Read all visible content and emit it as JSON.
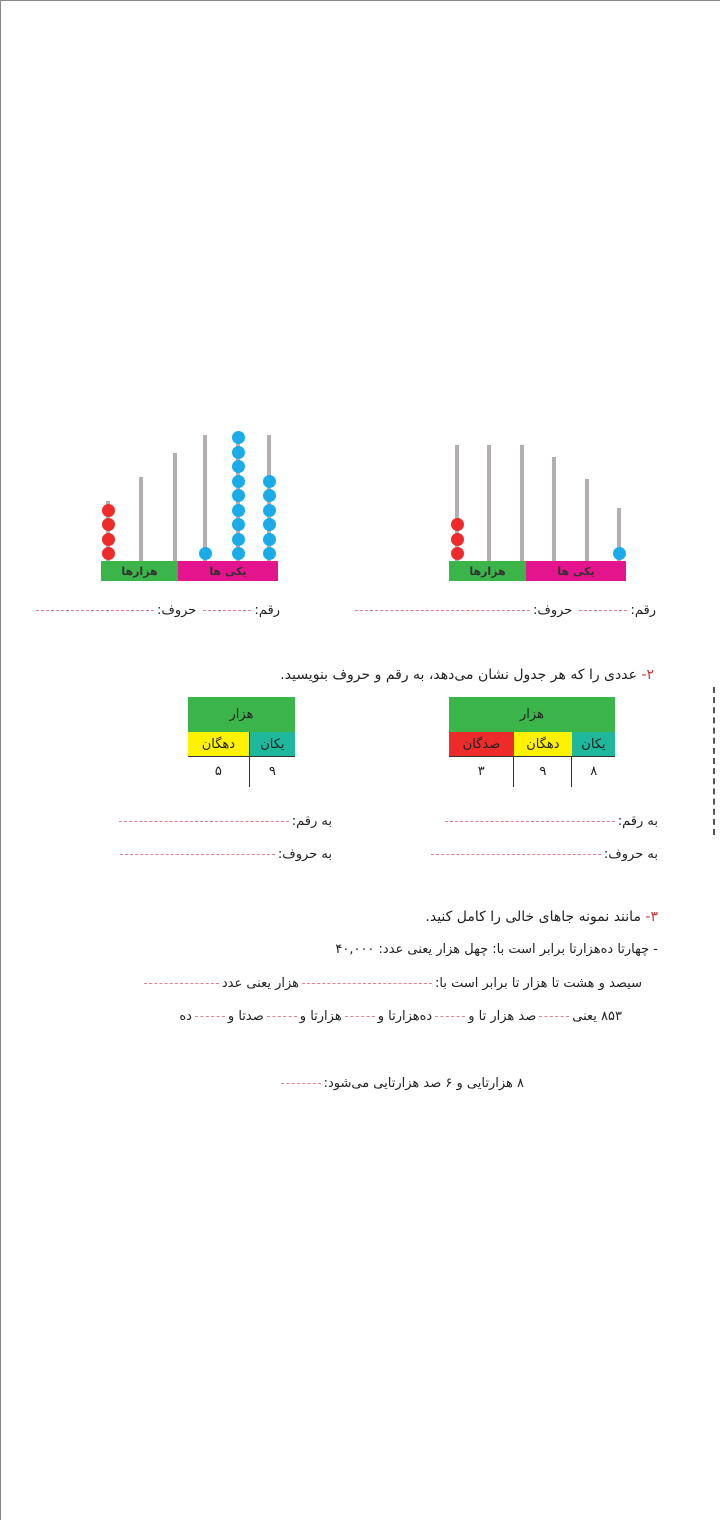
{
  "colors": {
    "green": "#3bb44a",
    "magenta": "#e4148c",
    "red": "#ee2b2b",
    "blue": "#1aabe8",
    "yellow": "#fff200",
    "teal": "#1fb89c",
    "dash": "#e57f8f"
  },
  "abacus_left": {
    "thousands_label": "هزارها",
    "ones_label": "یکی ها",
    "beads": [
      {
        "color": "red",
        "count": 4
      },
      {
        "color": "red",
        "count": 0
      },
      {
        "color": "red",
        "count": 0
      },
      {
        "color": "blue",
        "count": 1
      },
      {
        "color": "blue",
        "count": 9
      },
      {
        "color": "blue",
        "count": 6
      }
    ],
    "digit_label": "رقم:",
    "words_label": "حروف:"
  },
  "abacus_right": {
    "thousands_label": "هزارها",
    "ones_label": "یکی ها",
    "beads": [
      {
        "color": "red",
        "count": 3
      },
      {
        "color": "red",
        "count": 0
      },
      {
        "color": "red",
        "count": 0
      },
      {
        "color": "blue",
        "count": 0
      },
      {
        "color": "blue",
        "count": 0
      },
      {
        "color": "blue",
        "count": 1
      }
    ],
    "digit_label": "رقم:",
    "words_label": "حروف:"
  },
  "q2": {
    "number": "۲-",
    "text": "عددی را که هر جدول نشان می‌دهد، به رقم و حروف بنویسید.",
    "table_right": {
      "header": "هزار",
      "cols": [
        "یکان",
        "دهگان",
        "صدگان"
      ],
      "values": [
        "۸",
        "۹",
        "۳"
      ]
    },
    "table_left": {
      "header": "هزار",
      "cols": [
        "یکان",
        "دهگان"
      ],
      "values": [
        "۹",
        "۵"
      ]
    },
    "digit_label": "به رقم:",
    "words_label": "به حروف:"
  },
  "q3": {
    "number": "۳-",
    "text": "مانند نمونه جاهای خالی را کامل کنید.",
    "line1": "- چهارتا ده‌هزارتا برابر است با: چهل هزار یعنی عدد: ۴۰,۰۰۰",
    "line2a": "سیصد و هشت تا هزار تا برابر است با:",
    "line2b": "هزار یعنی عدد",
    "line3": [
      "۸۵۳ یعنی",
      "صد هزار تا و",
      "ده‌هزارتا و",
      "هزارتا و",
      "صدتا و",
      "ده"
    ],
    "line4": "۸ هزارتایی و ۶ صد هزارتایی می‌شود:"
  }
}
